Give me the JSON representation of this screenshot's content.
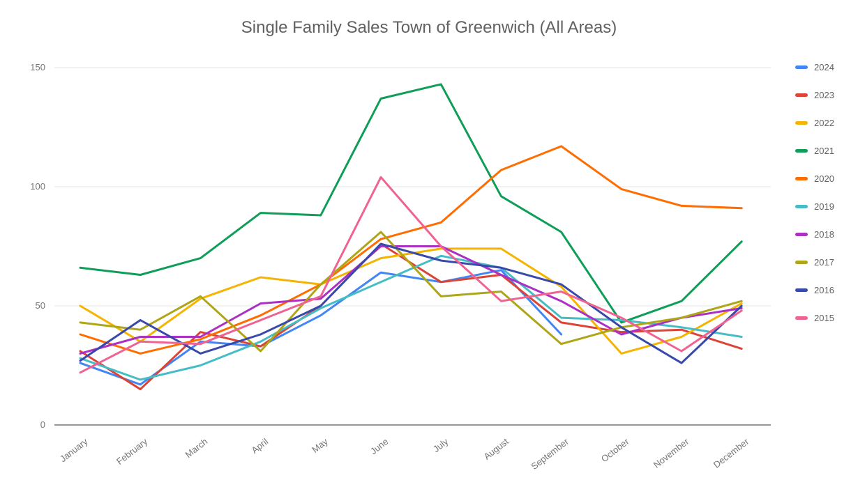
{
  "chart_data": {
    "type": "line",
    "title": "Single Family Sales Town of Greenwich (All Areas)",
    "xlabel": "",
    "ylabel": "",
    "ylim": [
      0,
      150
    ],
    "yticks": [
      0,
      50,
      100,
      150
    ],
    "grid": true,
    "legend_position": "right",
    "categories": [
      "January",
      "February",
      "March",
      "April",
      "May",
      "June",
      "July",
      "August",
      "September",
      "October",
      "November",
      "December"
    ],
    "series": [
      {
        "name": "2024",
        "color": "#4285F4",
        "values": [
          26,
          17,
          35,
          33,
          46,
          64,
          60,
          65,
          38,
          null,
          null,
          null
        ]
      },
      {
        "name": "2023",
        "color": "#DB4437",
        "values": [
          31,
          15,
          39,
          33,
          50,
          76,
          60,
          63,
          43,
          39,
          40,
          32
        ]
      },
      {
        "name": "2022",
        "color": "#F4B400",
        "values": [
          50,
          35,
          53,
          62,
          59,
          70,
          74,
          74,
          58,
          30,
          37,
          51
        ]
      },
      {
        "name": "2021",
        "color": "#0F9D58",
        "values": [
          66,
          63,
          70,
          89,
          88,
          137,
          143,
          96,
          81,
          43,
          52,
          77
        ]
      },
      {
        "name": "2020",
        "color": "#FF6D00",
        "values": [
          38,
          30,
          36,
          46,
          59,
          78,
          85,
          107,
          117,
          99,
          92,
          91
        ]
      },
      {
        "name": "2019",
        "color": "#46BDC6",
        "values": [
          28,
          19,
          25,
          35,
          49,
          60,
          71,
          66,
          45,
          44,
          41,
          37
        ]
      },
      {
        "name": "2018",
        "color": "#AB30C4",
        "values": [
          30,
          37,
          37,
          51,
          53,
          75,
          75,
          63,
          52,
          38,
          45,
          49
        ]
      },
      {
        "name": "2017",
        "color": "#AEA616",
        "values": [
          43,
          40,
          54,
          31,
          59,
          81,
          54,
          56,
          34,
          41,
          45,
          52
        ]
      },
      {
        "name": "2016",
        "color": "#3949AB",
        "values": [
          27,
          44,
          30,
          38,
          50,
          76,
          69,
          66,
          59,
          41,
          26,
          50
        ]
      },
      {
        "name": "2015",
        "color": "#F06292",
        "values": [
          22,
          35,
          34,
          44,
          54,
          104,
          75,
          52,
          56,
          45,
          31,
          48
        ]
      }
    ]
  }
}
